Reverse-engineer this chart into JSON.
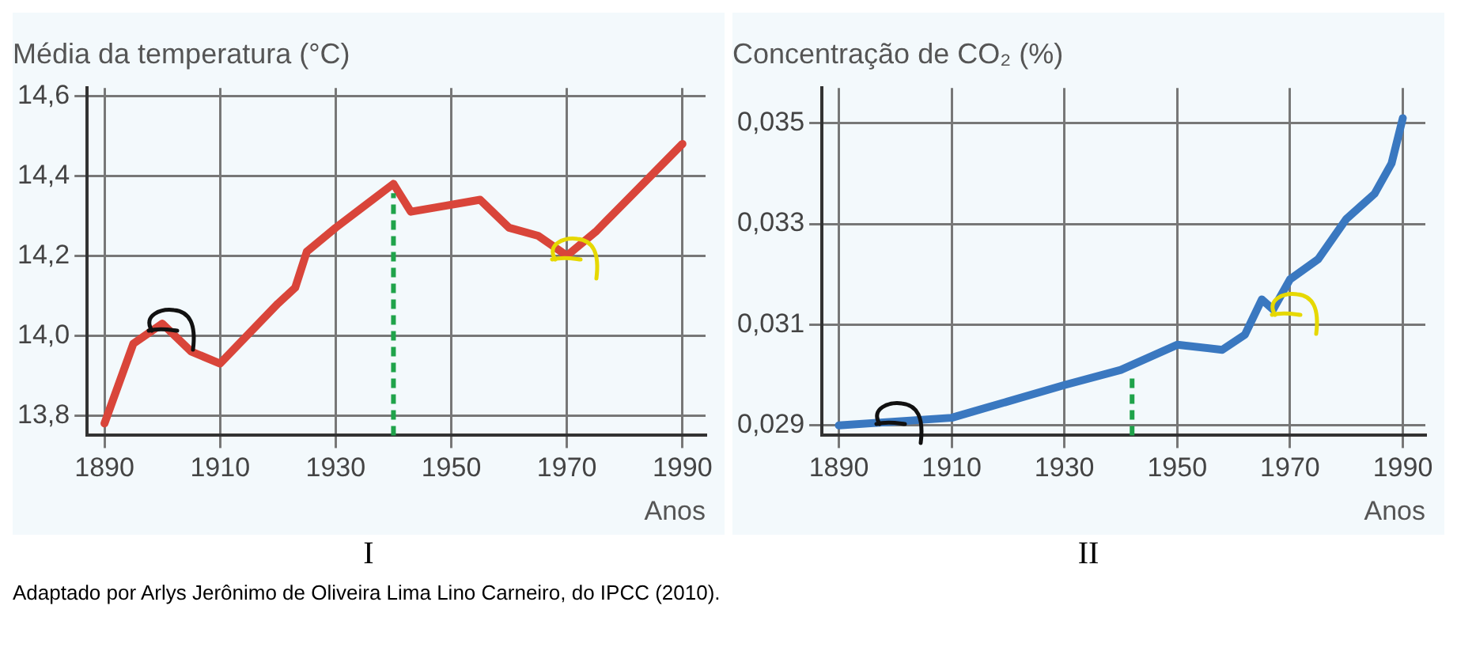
{
  "chart_data": [
    {
      "type": "line",
      "title": "Média da temperatura (°C)",
      "xlabel": "Anos",
      "x": [
        1890,
        1895,
        1900,
        1905,
        1910,
        1920,
        1923,
        1925,
        1930,
        1940,
        1943,
        1947,
        1955,
        1960,
        1965,
        1970,
        1975,
        1990
      ],
      "series": [
        {
          "color": "#d9453a",
          "values": [
            13.78,
            13.98,
            14.03,
            13.96,
            13.93,
            14.08,
            14.12,
            14.21,
            14.27,
            14.38,
            14.31,
            14.32,
            14.34,
            14.27,
            14.25,
            14.2,
            14.26,
            14.48
          ]
        }
      ],
      "xlim": [
        1887,
        1994
      ],
      "xticks": [
        1890,
        1910,
        1930,
        1950,
        1970,
        1990
      ],
      "ylim": [
        13.75,
        14.62
      ],
      "yticks": [
        {
          "value": 13.8,
          "label": "13,8"
        },
        {
          "value": 14,
          "label": "14,0"
        },
        {
          "value": 14.2,
          "label": "14,2"
        },
        {
          "value": 14.4,
          "label": "14,4"
        },
        {
          "value": 14.6,
          "label": "14,6"
        }
      ],
      "grid": true,
      "legend": false,
      "line_style": "solid",
      "marker": "none",
      "ref_lines": [
        {
          "axis": "x",
          "value": 1940,
          "color": "#1fa34a",
          "line_style": "dashed"
        }
      ],
      "annotations": [
        "I",
        "Adaptado por Arlys Jerônimo de Oliveira Lima Lino Carneiro, do IPCC (2010)."
      ]
    },
    {
      "type": "line",
      "title": "Concentração de CO₂ (%)",
      "xlabel": "Anos",
      "x": [
        1890,
        1910,
        1930,
        1940,
        1950,
        1958,
        1962,
        1965,
        1967,
        1970,
        1975,
        1980,
        1985,
        1988,
        1990
      ],
      "series": [
        {
          "color": "#3a78c0",
          "values": [
            0.029,
            0.02915,
            0.0298,
            0.0301,
            0.0306,
            0.0305,
            0.0308,
            0.0315,
            0.0313,
            0.0319,
            0.0323,
            0.0331,
            0.0336,
            0.0342,
            0.0351
          ]
        }
      ],
      "xlim": [
        1887,
        1994
      ],
      "xticks": [
        1890,
        1910,
        1930,
        1950,
        1970,
        1990
      ],
      "ylim": [
        0.0288,
        0.0357
      ],
      "yticks": [
        {
          "value": 0.029,
          "label": "0,029"
        },
        {
          "value": 0.031,
          "label": "0,031"
        },
        {
          "value": 0.033,
          "label": "0,033"
        },
        {
          "value": 0.035,
          "label": "0,035"
        }
      ],
      "grid": true,
      "legend": false,
      "line_style": "solid",
      "marker": "none",
      "ref_lines": [
        {
          "axis": "x",
          "value": 1942,
          "color": "#1fa34a",
          "line_style": "dashed"
        }
      ],
      "annotations": [
        "II"
      ]
    }
  ]
}
